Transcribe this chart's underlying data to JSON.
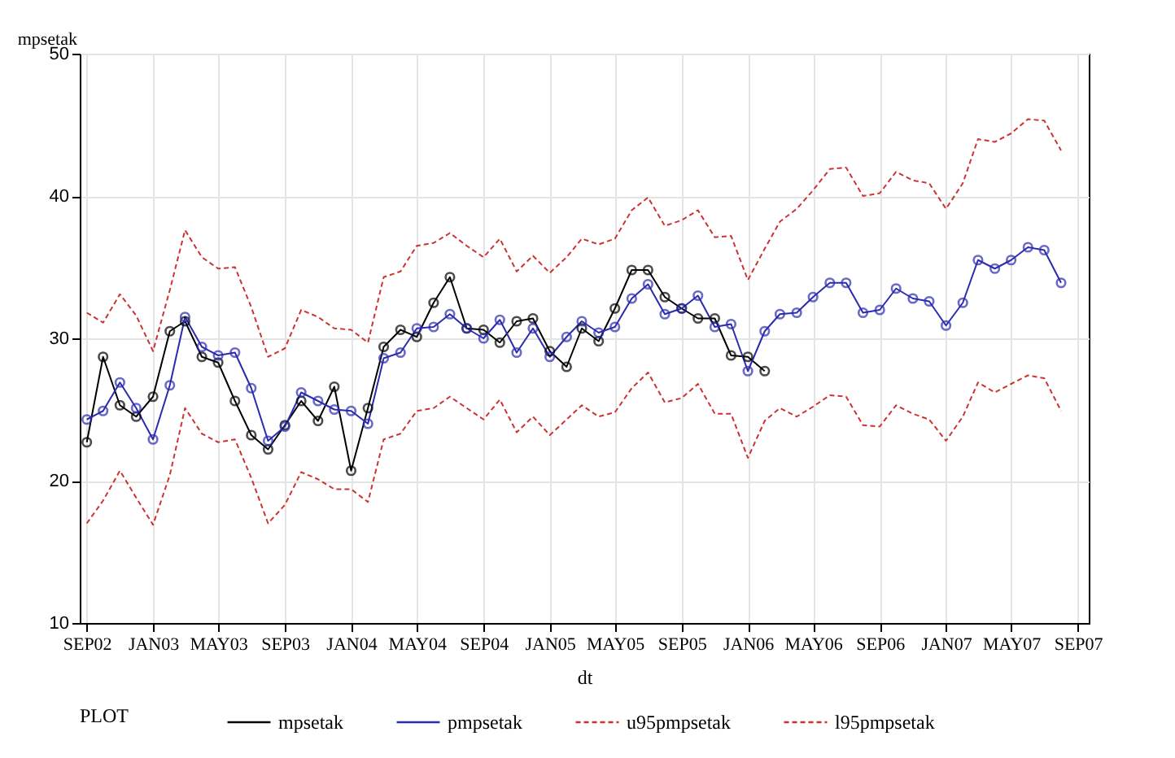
{
  "chart_data": {
    "type": "line",
    "xlabel": "dt",
    "ylabel": "mpsetak",
    "legend_title": "PLOT",
    "x": [
      "2002-09",
      "2002-10",
      "2002-11",
      "2002-12",
      "2003-01",
      "2003-02",
      "2003-03",
      "2003-04",
      "2003-05",
      "2003-06",
      "2003-07",
      "2003-08",
      "2003-09",
      "2003-10",
      "2003-11",
      "2003-12",
      "2004-01",
      "2004-02",
      "2004-03",
      "2004-04",
      "2004-05",
      "2004-06",
      "2004-07",
      "2004-08",
      "2004-09",
      "2004-10",
      "2004-11",
      "2004-12",
      "2005-01",
      "2005-02",
      "2005-03",
      "2005-04",
      "2005-05",
      "2005-06",
      "2005-07",
      "2005-08",
      "2005-09",
      "2005-10",
      "2005-11",
      "2005-12",
      "2006-01",
      "2006-02",
      "2006-03",
      "2006-04",
      "2006-05",
      "2006-06",
      "2006-07",
      "2006-08",
      "2006-09",
      "2006-10",
      "2006-11",
      "2006-12",
      "2007-01",
      "2007-02",
      "2007-03",
      "2007-04",
      "2007-05",
      "2007-06",
      "2007-07",
      "2007-08"
    ],
    "series": [
      {
        "name": "mpsetak",
        "color": "#000000",
        "marker": "circle",
        "line_style": "solid",
        "values": [
          22.7,
          28.7,
          25.3,
          24.5,
          25.9,
          30.5,
          31.2,
          28.7,
          28.3,
          25.6,
          23.2,
          22.2,
          23.9,
          25.6,
          24.2,
          26.6,
          20.7,
          25.1,
          29.4,
          30.6,
          30.1,
          32.5,
          34.3,
          30.7,
          30.6,
          29.7,
          31.2,
          31.4,
          29.1,
          28.0,
          30.7,
          29.8,
          32.1,
          34.8,
          34.8,
          32.9,
          32.1,
          31.4,
          31.4,
          28.8,
          28.7,
          27.7,
          null,
          null,
          null,
          null,
          null,
          null,
          null,
          null,
          null,
          null,
          null,
          null,
          null,
          null,
          null,
          null,
          null,
          null
        ]
      },
      {
        "name": "pmpsetak",
        "color": "#2b2bb0",
        "marker": "circle",
        "line_style": "solid",
        "values": [
          24.3,
          24.9,
          26.9,
          25.1,
          22.9,
          26.7,
          31.5,
          29.4,
          28.8,
          29.0,
          26.5,
          22.8,
          23.8,
          26.2,
          25.6,
          25.0,
          24.9,
          24.0,
          28.6,
          29.0,
          30.7,
          30.8,
          31.7,
          30.7,
          30.0,
          31.3,
          29.0,
          30.7,
          28.7,
          30.1,
          31.2,
          30.4,
          30.8,
          32.8,
          33.8,
          31.7,
          32.1,
          33.0,
          30.8,
          31.0,
          27.7,
          30.5,
          31.7,
          31.8,
          32.9,
          33.9,
          33.9,
          31.8,
          32.0,
          33.5,
          32.8,
          32.6,
          30.9,
          32.5,
          35.5,
          34.9,
          35.5,
          36.4,
          36.2,
          33.9
        ]
      },
      {
        "name": "u95pmpsetak",
        "color": "#cc3333",
        "marker": "none",
        "line_style": "dashed",
        "values": [
          31.8,
          31.1,
          33.1,
          31.6,
          29.1,
          33.4,
          37.6,
          35.7,
          34.9,
          35.0,
          32.2,
          28.7,
          29.3,
          32.0,
          31.5,
          30.7,
          30.6,
          29.7,
          34.3,
          34.7,
          36.5,
          36.7,
          37.4,
          36.5,
          35.7,
          37.0,
          34.7,
          35.8,
          34.6,
          35.7,
          37.0,
          36.6,
          37.0,
          39.0,
          39.9,
          37.9,
          38.3,
          39.0,
          37.1,
          37.2,
          34.1,
          36.3,
          38.2,
          39.1,
          40.4,
          41.9,
          42.0,
          40.0,
          40.2,
          41.7,
          41.1,
          40.9,
          39.1,
          40.9,
          44.0,
          43.8,
          44.4,
          45.4,
          45.3,
          43.2
        ]
      },
      {
        "name": "l95pmpsetak",
        "color": "#cc3333",
        "marker": "none",
        "line_style": "dashed",
        "values": [
          17.0,
          18.6,
          20.7,
          18.8,
          16.9,
          20.4,
          25.1,
          23.3,
          22.7,
          22.9,
          20.2,
          17.0,
          18.3,
          20.6,
          20.1,
          19.4,
          19.4,
          18.5,
          22.9,
          23.3,
          24.9,
          25.1,
          25.9,
          25.1,
          24.3,
          25.7,
          23.4,
          24.5,
          23.2,
          24.3,
          25.3,
          24.5,
          24.8,
          26.5,
          27.6,
          25.5,
          25.8,
          26.8,
          24.7,
          24.7,
          21.6,
          24.2,
          25.1,
          24.5,
          25.2,
          26.0,
          25.9,
          23.9,
          23.8,
          25.3,
          24.7,
          24.3,
          22.8,
          24.5,
          26.9,
          26.2,
          26.8,
          27.4,
          27.2,
          24.9
        ]
      }
    ],
    "xlim": [
      "2002-08-19",
      "2007-09-21"
    ],
    "xticks": [
      {
        "value": "2002-09",
        "label": "SEP02"
      },
      {
        "value": "2003-01",
        "label": "JAN03"
      },
      {
        "value": "2003-05",
        "label": "MAY03"
      },
      {
        "value": "2003-09",
        "label": "SEP03"
      },
      {
        "value": "2004-01",
        "label": "JAN04"
      },
      {
        "value": "2004-05",
        "label": "MAY04"
      },
      {
        "value": "2004-09",
        "label": "SEP04"
      },
      {
        "value": "2005-01",
        "label": "JAN05"
      },
      {
        "value": "2005-05",
        "label": "MAY05"
      },
      {
        "value": "2005-09",
        "label": "SEP05"
      },
      {
        "value": "2006-01",
        "label": "JAN06"
      },
      {
        "value": "2006-05",
        "label": "MAY06"
      },
      {
        "value": "2006-09",
        "label": "SEP06"
      },
      {
        "value": "2007-01",
        "label": "JAN07"
      },
      {
        "value": "2007-05",
        "label": "MAY07"
      },
      {
        "value": "2007-09",
        "label": "SEP07"
      }
    ],
    "ylim": [
      10,
      50
    ],
    "yticks": [
      10,
      20,
      30,
      40,
      50
    ],
    "grid": true,
    "legend": "bottom"
  }
}
